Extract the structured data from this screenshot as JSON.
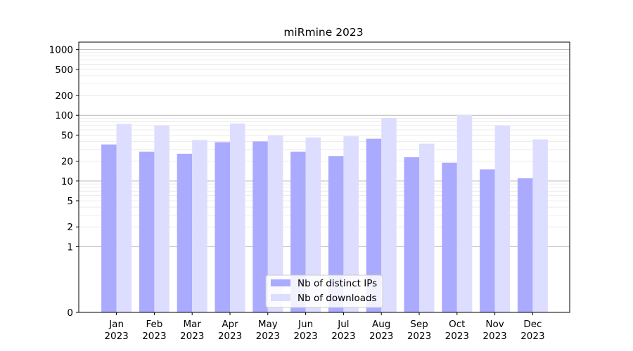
{
  "chart_data": {
    "type": "bar",
    "title": "miRmine 2023",
    "xlabel": "",
    "ylabel": "",
    "y_scale": "symlog",
    "ylim": [
      0,
      1300
    ],
    "y_ticks": [
      0,
      1,
      2,
      5,
      10,
      20,
      50,
      100,
      200,
      500,
      1000
    ],
    "y_tick_labels": [
      "0",
      "1",
      "2",
      "5",
      "10",
      "20",
      "50",
      "100",
      "200",
      "500",
      "1000"
    ],
    "grid": true,
    "legend_position": "lower-center",
    "categories": [
      {
        "month": "Jan",
        "year": "2023"
      },
      {
        "month": "Feb",
        "year": "2023"
      },
      {
        "month": "Mar",
        "year": "2023"
      },
      {
        "month": "Apr",
        "year": "2023"
      },
      {
        "month": "May",
        "year": "2023"
      },
      {
        "month": "Jun",
        "year": "2023"
      },
      {
        "month": "Jul",
        "year": "2023"
      },
      {
        "month": "Aug",
        "year": "2023"
      },
      {
        "month": "Sep",
        "year": "2023"
      },
      {
        "month": "Oct",
        "year": "2023"
      },
      {
        "month": "Nov",
        "year": "2023"
      },
      {
        "month": "Dec",
        "year": "2023"
      }
    ],
    "series": [
      {
        "name": "Nb of distinct IPs",
        "color": "#aaaaff",
        "values": [
          36,
          28,
          26,
          39,
          40,
          28,
          24,
          44,
          23,
          19,
          15,
          11
        ]
      },
      {
        "name": "Nb of downloads",
        "color": "#ddddff",
        "values": [
          74,
          70,
          42,
          75,
          49,
          46,
          48,
          91,
          37,
          102,
          70,
          43
        ]
      }
    ]
  }
}
